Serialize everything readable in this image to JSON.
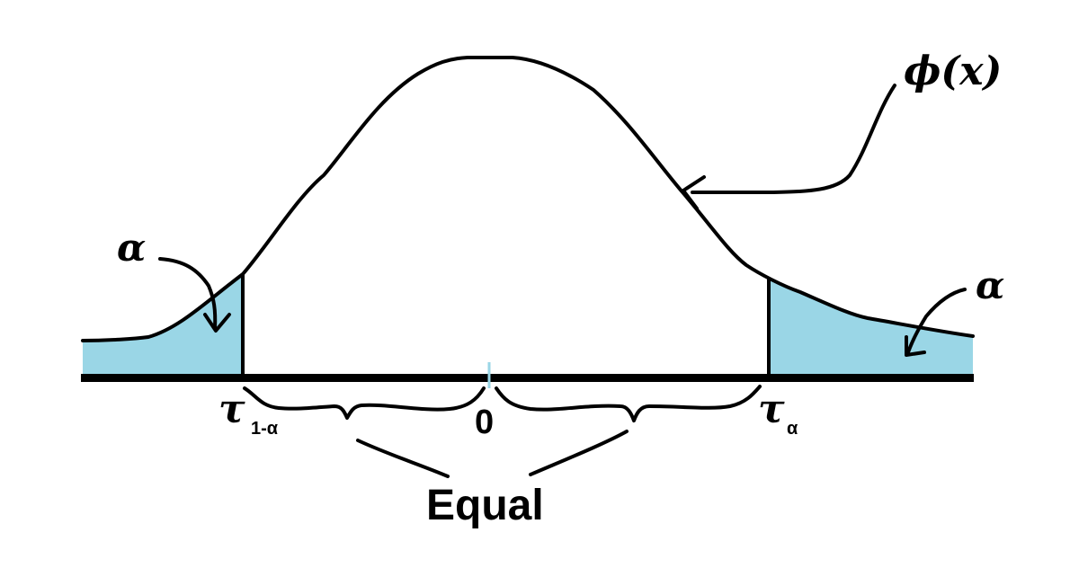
{
  "curve_label": "ϕ(x)",
  "left_tail": {
    "area_label": "α",
    "tick_symbol": "τ",
    "tick_subscript": "1-α"
  },
  "right_tail": {
    "area_label": "α",
    "tick_symbol": "τ",
    "tick_subscript": "α"
  },
  "center_tick_label": "0",
  "equal_label": "Equal",
  "colors": {
    "tail_fill": "#9ad6e6",
    "line": "#000000",
    "center_mark": "#9ad6e6"
  }
}
